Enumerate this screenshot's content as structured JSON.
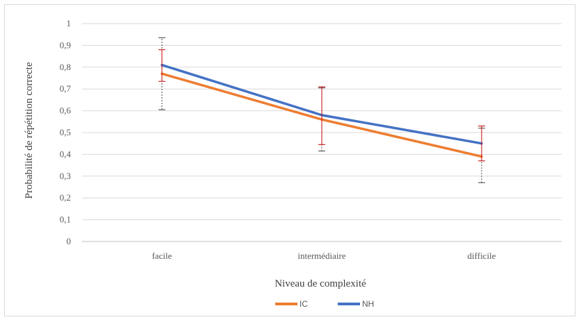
{
  "chart_data": {
    "type": "line",
    "categories": [
      "facile",
      "intermédiaire",
      "difficile"
    ],
    "xlabel": "Niveau de complexité",
    "ylabel": "Probabilité de répétition correcte",
    "ylim": [
      0,
      1
    ],
    "yticks": [
      "0",
      "0,1",
      "0,2",
      "0,3",
      "0,4",
      "0,5",
      "0,6",
      "0,7",
      "0,8",
      "0,9",
      "1"
    ],
    "grid": true,
    "legend_position": "bottom",
    "series": [
      {
        "name": "IC",
        "color": "#ED7D31",
        "values": [
          0.77,
          0.56,
          0.39
        ],
        "error_low": [
          0.605,
          0.415,
          0.27
        ],
        "error_high": [
          0.935,
          0.705,
          0.52
        ],
        "error_color": "#404040",
        "error_style": "dashed"
      },
      {
        "name": "NH",
        "color": "#4472C4",
        "values": [
          0.81,
          0.58,
          0.45
        ],
        "error_low": [
          0.735,
          0.445,
          0.37
        ],
        "error_high": [
          0.88,
          0.71,
          0.53
        ],
        "error_color": "#C00000",
        "error_style": "solid"
      }
    ]
  }
}
